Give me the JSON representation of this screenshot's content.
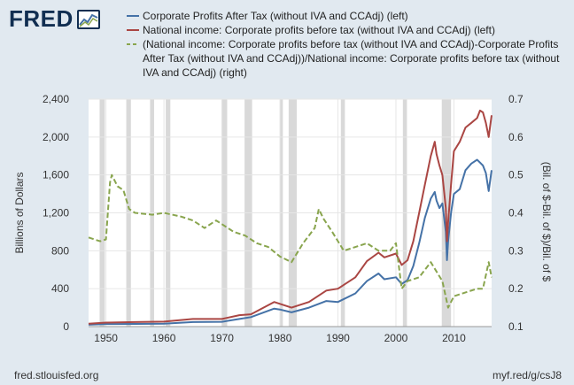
{
  "logo": {
    "text": "FRED",
    "icon": "fred-chart-icon"
  },
  "footer": {
    "source": "fred.stlouisfed.org",
    "link": "myf.red/g/csJ8"
  },
  "colors": {
    "background": "#e1e9f0",
    "plot_bg": "#ffffff",
    "recession": "#d9d9d9",
    "grid": "#e6e6e6"
  },
  "chart_data": {
    "type": "line",
    "xlabel": "",
    "ylabel": "Billions of Dollars",
    "ylabel_right": "(Bil. of $-Bil. of $)/Bil. of $",
    "xlim": [
      1947,
      2016.5
    ],
    "ylim": [
      0,
      2400
    ],
    "ylim_right": [
      0.1,
      0.7
    ],
    "x_ticks": [
      1950,
      1960,
      1970,
      1980,
      1990,
      2000,
      2010
    ],
    "y_ticks": [
      "0",
      "400",
      "800",
      "1,200",
      "1,600",
      "2,000",
      "2,400"
    ],
    "y_ticks_right": [
      "0.1",
      "0.2",
      "0.3",
      "0.4",
      "0.5",
      "0.6",
      "0.7"
    ],
    "grid": true,
    "legend_position": "top",
    "recessions": [
      [
        1948.9,
        1949.8
      ],
      [
        1953.5,
        1954.3
      ],
      [
        1957.6,
        1958.3
      ],
      [
        1960.3,
        1961.1
      ],
      [
        1969.9,
        1970.9
      ],
      [
        1973.9,
        1975.2
      ],
      [
        1980.0,
        1980.5
      ],
      [
        1981.5,
        1982.9
      ],
      [
        1990.5,
        1991.2
      ],
      [
        2001.2,
        2001.9
      ],
      [
        2007.9,
        2009.5
      ]
    ],
    "series": [
      {
        "name": "Corporate Profits After Tax (without IVA and CCAdj) (left)",
        "color": "#4572a7",
        "dash": "solid",
        "axis": "left",
        "x": [
          1947,
          1950,
          1955,
          1960,
          1965,
          1970,
          1973,
          1975,
          1979,
          1980,
          1982,
          1985,
          1988,
          1990,
          1993,
          1995,
          1997,
          1998,
          2000,
          2001,
          2002,
          2003,
          2004,
          2005,
          2006,
          2006.7,
          2007,
          2007.5,
          2008,
          2008.6,
          2008.8,
          2009,
          2009.5,
          2010,
          2011,
          2012,
          2013,
          2014,
          2014.5,
          2015,
          2015.5,
          2016,
          2016.5
        ],
        "y": [
          20,
          27,
          28,
          30,
          48,
          50,
          80,
          100,
          190,
          180,
          150,
          200,
          270,
          260,
          350,
          480,
          560,
          500,
          520,
          450,
          490,
          640,
          880,
          1150,
          1350,
          1420,
          1330,
          1250,
          1300,
          1000,
          700,
          900,
          1200,
          1400,
          1450,
          1650,
          1720,
          1760,
          1730,
          1700,
          1620,
          1430,
          1650
        ]
      },
      {
        "name": "National income: Corporate profits before tax (without IVA and CCAdj) (left)",
        "color": "#aa4643",
        "dash": "solid",
        "axis": "left",
        "x": [
          1947,
          1950,
          1955,
          1960,
          1965,
          1970,
          1973,
          1975,
          1979,
          1980,
          1982,
          1985,
          1988,
          1990,
          1993,
          1995,
          1997,
          1998,
          2000,
          2001,
          2002,
          2003,
          2004,
          2005,
          2006,
          2006.7,
          2007,
          2007.5,
          2008,
          2008.6,
          2008.8,
          2009,
          2009.5,
          2010,
          2011,
          2012,
          2013,
          2014,
          2014.5,
          2015,
          2015.5,
          2016,
          2016.5
        ],
        "y": [
          30,
          42,
          48,
          52,
          80,
          80,
          120,
          130,
          260,
          240,
          200,
          260,
          380,
          400,
          520,
          690,
          780,
          730,
          770,
          650,
          700,
          900,
          1200,
          1500,
          1800,
          1950,
          1820,
          1700,
          1600,
          1250,
          900,
          1100,
          1500,
          1850,
          1950,
          2100,
          2150,
          2200,
          2280,
          2260,
          2150,
          2000,
          2230
        ]
      },
      {
        "name": "(National income: Corporate profits before tax (without IVA and CCAdj)-Corporate Profits After Tax (without IVA and CCAdj))/National income: Corporate profits before tax (without IVA and CCAdj) (right)",
        "color": "#89a54e",
        "dash": "dashed",
        "axis": "right",
        "x": [
          1947,
          1948,
          1949,
          1950,
          1950.7,
          1951,
          1952,
          1953,
          1954,
          1955,
          1958,
          1960,
          1963,
          1965,
          1967,
          1969,
          1970,
          1972,
          1974,
          1976,
          1978,
          1980,
          1982,
          1984,
          1986,
          1986.7,
          1987.5,
          1989,
          1991,
          1993,
          1995,
          1997,
          1999,
          2000,
          2001,
          2002,
          2004,
          2006,
          2008,
          2009,
          2010,
          2012,
          2014,
          2015,
          2016,
          2016.5
        ],
        "y": [
          0.335,
          0.33,
          0.325,
          0.33,
          0.48,
          0.5,
          0.47,
          0.46,
          0.41,
          0.4,
          0.395,
          0.4,
          0.39,
          0.38,
          0.36,
          0.38,
          0.37,
          0.35,
          0.34,
          0.32,
          0.31,
          0.285,
          0.27,
          0.32,
          0.36,
          0.41,
          0.385,
          0.35,
          0.3,
          0.31,
          0.32,
          0.3,
          0.3,
          0.32,
          0.2,
          0.22,
          0.23,
          0.27,
          0.22,
          0.15,
          0.18,
          0.19,
          0.2,
          0.2,
          0.27,
          0.23
        ]
      }
    ]
  }
}
